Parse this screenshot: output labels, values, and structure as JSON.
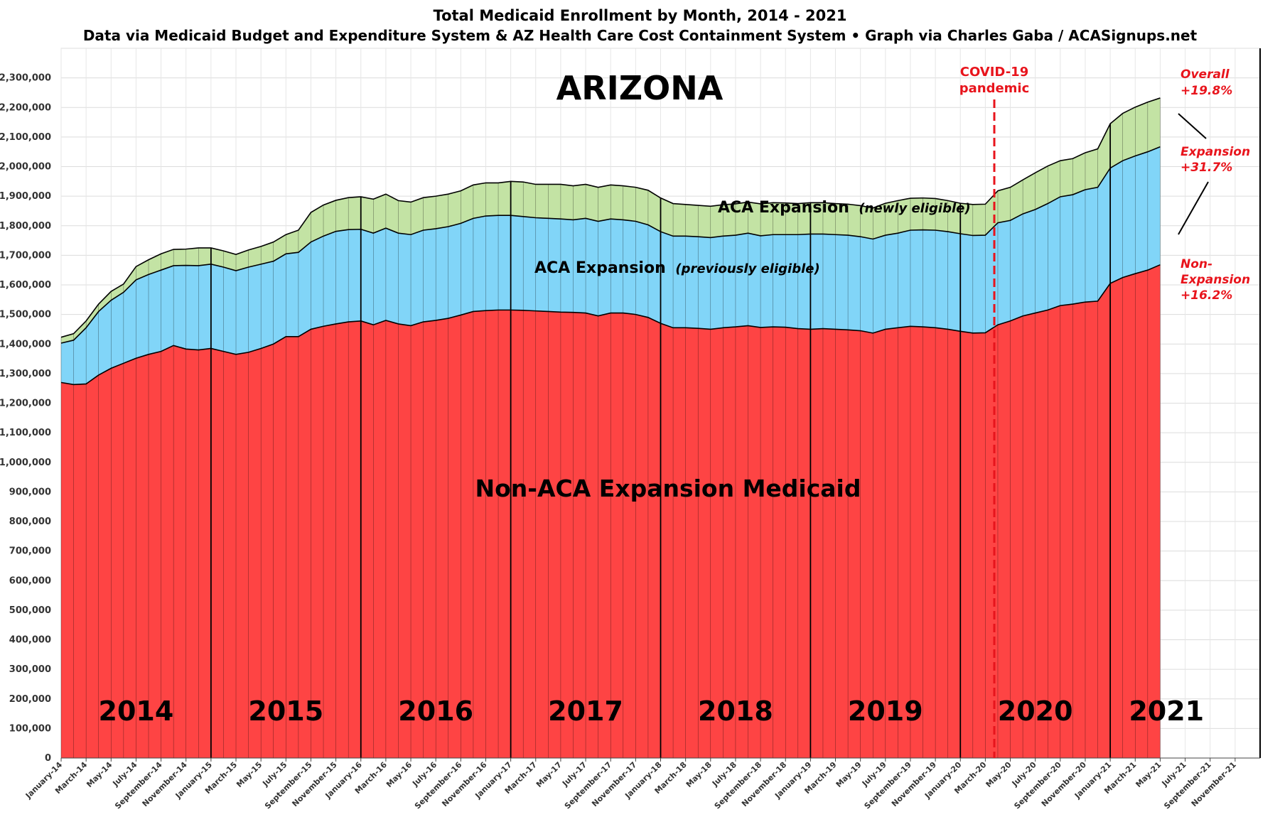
{
  "chart_data": {
    "type": "area",
    "title": "Total Medicaid Enrollment by Month, 2014 - 2021",
    "subtitle": "Data via Medicaid Budget and Expenditure System & AZ Health Care Cost Containment System  •  Graph via Charles Gaba / ACASignups.net",
    "state_label": "ARIZONA",
    "ylim": [
      0,
      2400000
    ],
    "y_ticks": [
      "0",
      "100,000",
      "200,000",
      "300,000",
      "400,000",
      "500,000",
      "600,000",
      "700,000",
      "800,000",
      "900,000",
      "1,000,000",
      "1,100,000",
      "1,200,000",
      "1,300,000",
      "1,400,000",
      "1,500,000",
      "1,600,000",
      "1,700,000",
      "1,800,000",
      "1,900,000",
      "2,000,000",
      "2,100,000",
      "2,200,000",
      "2,300,000"
    ],
    "x_ticks": [
      "January-14",
      "March-14",
      "May-14",
      "July-14",
      "September-14",
      "November-14",
      "January-15",
      "March-15",
      "May-15",
      "July-15",
      "September-15",
      "November-15",
      "January-16",
      "March-16",
      "May-16",
      "July-16",
      "September-16",
      "November-16",
      "January-17",
      "March-17",
      "May-17",
      "July-17",
      "September-17",
      "November-17",
      "January-18",
      "March-18",
      "May-18",
      "July-18",
      "September-18",
      "November-18",
      "January-19",
      "March-19",
      "May-19",
      "July-19",
      "September-19",
      "November-19",
      "January-20",
      "March-20",
      "May-20",
      "July-20",
      "September-20",
      "November-20",
      "January-21",
      "March-21",
      "May-21",
      "July-21",
      "September-21",
      "November-21"
    ],
    "year_labels": [
      "2014",
      "2015",
      "2016",
      "2017",
      "2018",
      "2019",
      "2020",
      "2021"
    ],
    "series": [
      {
        "name": "Non-ACA Expansion Medicaid",
        "color": "#fe4444",
        "values": [
          1270000,
          1263000,
          1265000,
          1295000,
          1318000,
          1335000,
          1352000,
          1365000,
          1375000,
          1395000,
          1383000,
          1380000,
          1385000,
          1375000,
          1365000,
          1372000,
          1385000,
          1400000,
          1425000,
          1425000,
          1450000,
          1460000,
          1468000,
          1475000,
          1478000,
          1465000,
          1480000,
          1468000,
          1462000,
          1475000,
          1480000,
          1487000,
          1498000,
          1510000,
          1513000,
          1515000,
          1515000,
          1514000,
          1512000,
          1510000,
          1508000,
          1507000,
          1505000,
          1495000,
          1505000,
          1505000,
          1500000,
          1490000,
          1470000,
          1455000,
          1455000,
          1453000,
          1450000,
          1455000,
          1458000,
          1462000,
          1456000,
          1458000,
          1457000,
          1452000,
          1450000,
          1452000,
          1450000,
          1448000,
          1445000,
          1437000,
          1450000,
          1455000,
          1460000,
          1458000,
          1455000,
          1450000,
          1443000,
          1437000,
          1438000,
          1465000,
          1478000,
          1495000,
          1505000,
          1515000,
          1530000,
          1535000,
          1542000,
          1545000,
          1605000,
          1625000,
          1638000,
          1650000,
          1668000
        ]
      },
      {
        "name": "ACA Expansion (previously eligible)",
        "color": "#81d5f8",
        "values": [
          133000,
          150000,
          190000,
          215000,
          230000,
          240000,
          265000,
          270000,
          275000,
          270000,
          283000,
          285000,
          285000,
          285000,
          283000,
          288000,
          285000,
          280000,
          280000,
          285000,
          295000,
          305000,
          313000,
          312000,
          310000,
          310000,
          312000,
          307000,
          308000,
          310000,
          310000,
          310000,
          310000,
          315000,
          320000,
          320000,
          320000,
          317000,
          315000,
          315000,
          315000,
          313000,
          320000,
          320000,
          318000,
          315000,
          315000,
          313000,
          310000,
          310000,
          310000,
          310000,
          310000,
          310000,
          310000,
          313000,
          310000,
          312000,
          313000,
          318000,
          322000,
          320000,
          320000,
          320000,
          318000,
          318000,
          318000,
          320000,
          325000,
          328000,
          330000,
          330000,
          330000,
          330000,
          330000,
          345000,
          340000,
          345000,
          350000,
          360000,
          368000,
          370000,
          380000,
          385000,
          390000,
          395000,
          398000,
          400000,
          399000
        ]
      },
      {
        "name": "ACA Expansion (newly eligible)",
        "color": "#c3e3a4",
        "values": [
          20000,
          22000,
          23000,
          25000,
          30000,
          28000,
          45000,
          50000,
          55000,
          55000,
          55000,
          60000,
          55000,
          55000,
          55000,
          58000,
          60000,
          65000,
          65000,
          75000,
          100000,
          105000,
          105000,
          108000,
          110000,
          115000,
          115000,
          110000,
          110000,
          110000,
          110000,
          110000,
          110000,
          113000,
          112000,
          110000,
          115000,
          117000,
          113000,
          115000,
          117000,
          115000,
          115000,
          115000,
          115000,
          115000,
          115000,
          117000,
          114000,
          110000,
          107000,
          106000,
          106000,
          106000,
          106000,
          105000,
          108000,
          108000,
          107000,
          105000,
          106000,
          106000,
          105000,
          105000,
          105000,
          105000,
          108000,
          110000,
          108000,
          108000,
          107000,
          105000,
          103000,
          105000,
          105000,
          108000,
          112000,
          115000,
          124000,
          127000,
          122000,
          122000,
          125000,
          130000,
          150000,
          160000,
          165000,
          168000,
          165000
        ]
      }
    ],
    "annotations": {
      "covid": {
        "line1": "COVID-19",
        "line2": "pandemic"
      },
      "overall": {
        "line1": "Overall",
        "line2": "+19.8%"
      },
      "expansion": {
        "line1": "Expansion",
        "line2": "+31.7%"
      },
      "nonexpansion": {
        "line1": "Non-",
        "line2": "Expansion",
        "line3": "+16.2%"
      },
      "label_newly": {
        "main": "ACA Expansion",
        "paren": "(newly eligible)"
      },
      "label_prev": {
        "main": "ACA Expansion",
        "paren": "(previously eligible)"
      },
      "label_non": "Non-ACA Expansion Medicaid"
    }
  }
}
